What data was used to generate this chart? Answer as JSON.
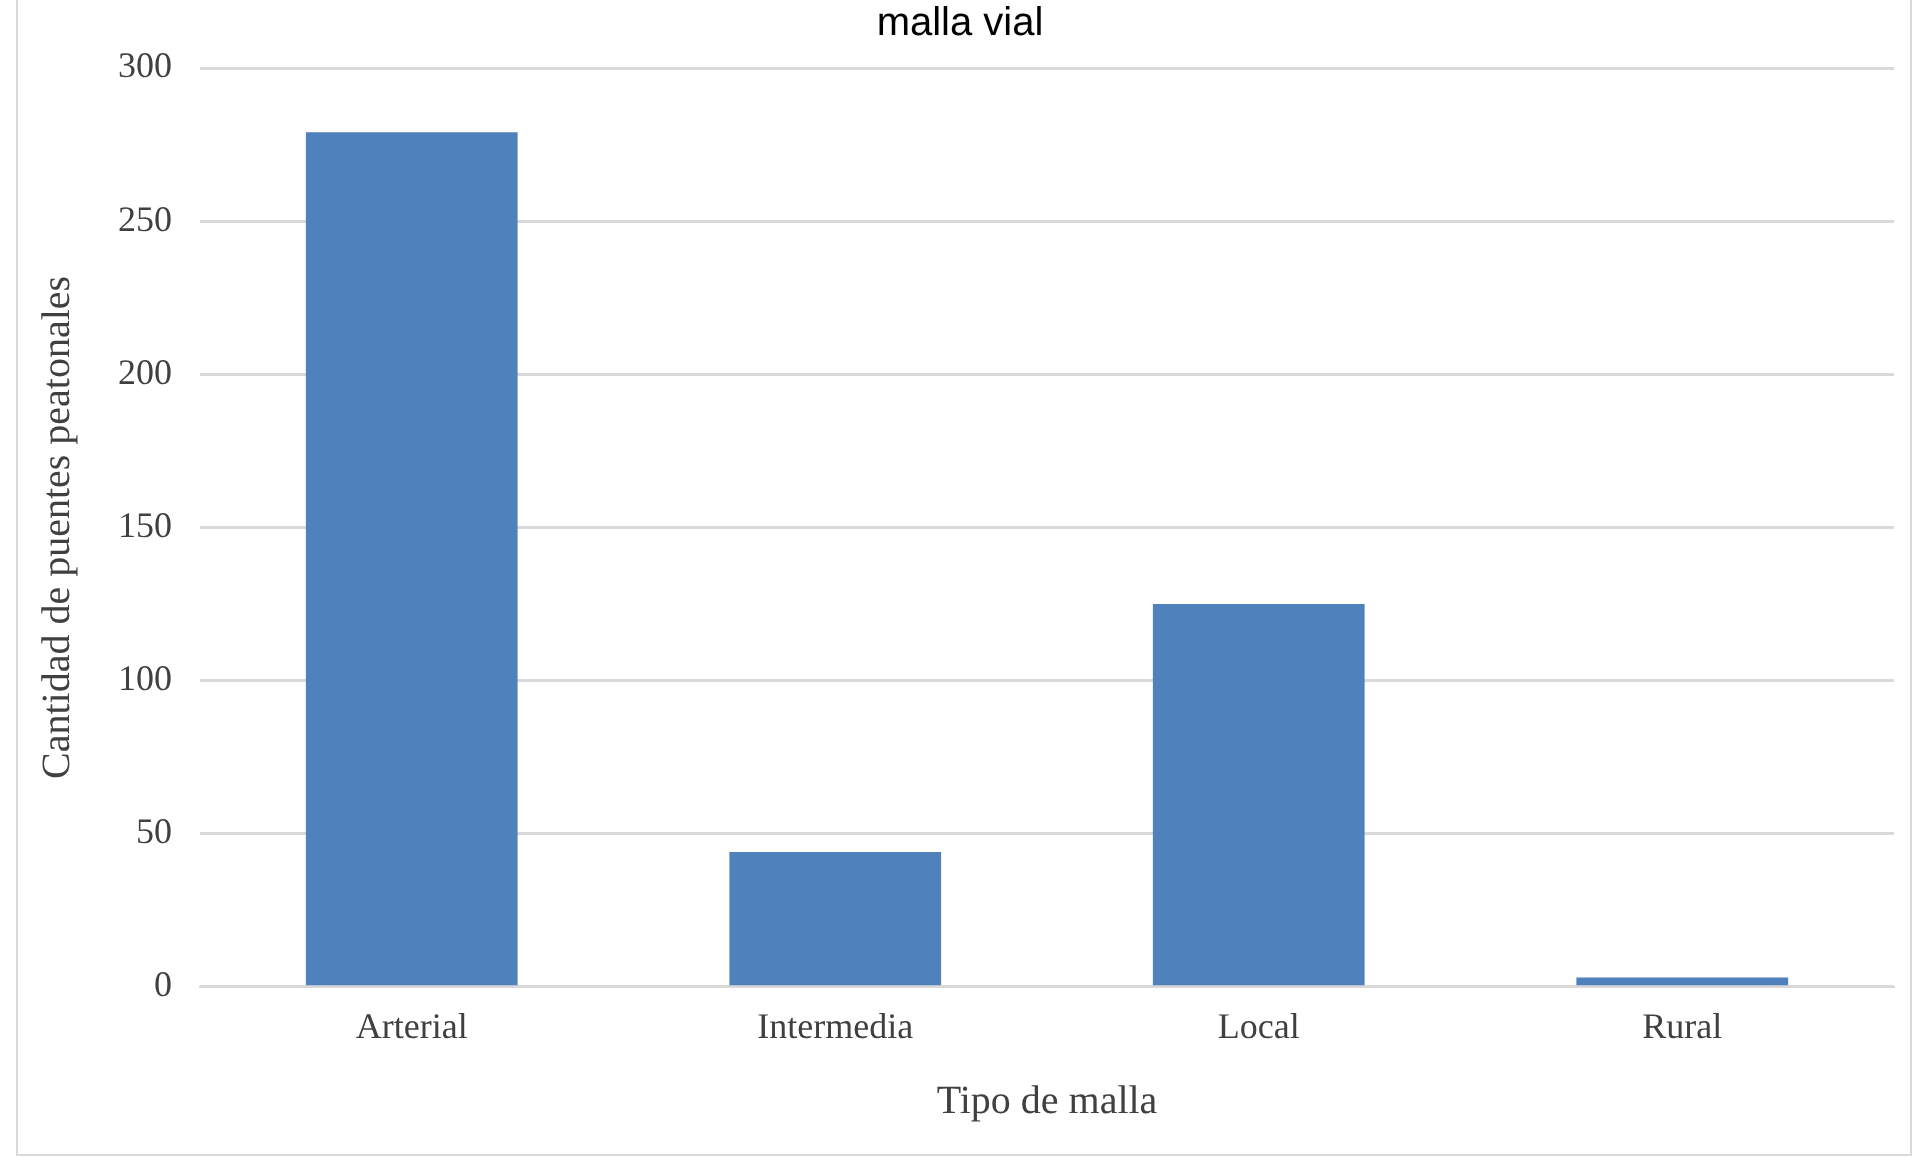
{
  "chart_data": {
    "type": "bar",
    "title": "malla vial",
    "xlabel": "Tipo de malla",
    "ylabel": "Cantidad de puentes peatonales",
    "categories": [
      "Arterial",
      "Intermedia",
      "Local",
      "Rural"
    ],
    "values": [
      279,
      44,
      125,
      3
    ],
    "color": "#4f81bd",
    "ylim": [
      0,
      300
    ],
    "yticks": [
      0,
      50,
      100,
      150,
      200,
      250,
      300
    ],
    "grid": "y",
    "legend": false
  }
}
